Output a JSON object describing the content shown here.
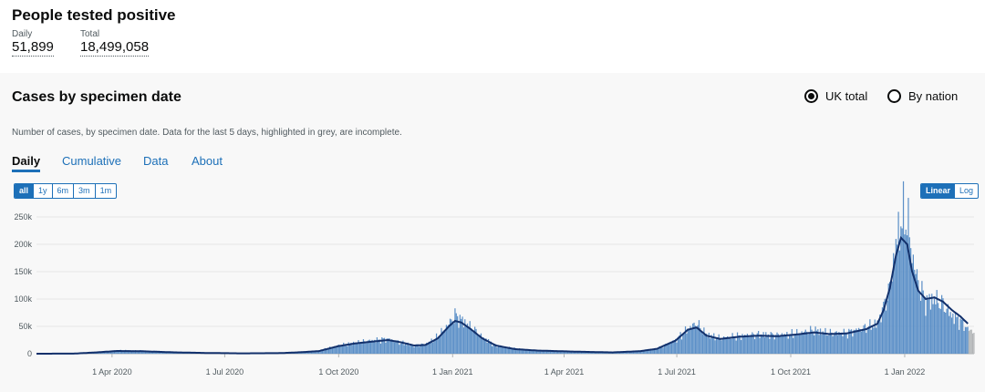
{
  "header": {
    "title": "People tested positive",
    "daily_label": "Daily",
    "daily_value": "51,899",
    "total_label": "Total",
    "total_value": "18,499,058"
  },
  "card": {
    "title": "Cases by specimen date",
    "radio_uk": "UK total",
    "radio_nation": "By nation",
    "radio_selected": "UK total",
    "description": "Number of cases, by specimen date. Data for the last 5 days, highlighted in grey, are incomplete.",
    "tabs": [
      {
        "label": "Daily",
        "active": true
      },
      {
        "label": "Cumulative",
        "active": false
      },
      {
        "label": "Data",
        "active": false
      },
      {
        "label": "About",
        "active": false
      }
    ],
    "ranges": [
      {
        "label": "all",
        "selected": true
      },
      {
        "label": "1y",
        "selected": false
      },
      {
        "label": "6m",
        "selected": false
      },
      {
        "label": "3m",
        "selected": false
      },
      {
        "label": "1m",
        "selected": false
      }
    ],
    "scales": [
      {
        "label": "Linear",
        "selected": true
      },
      {
        "label": "Log",
        "selected": false
      }
    ]
  },
  "colors": {
    "bar": "#5b8fc7",
    "line": "#12306b",
    "incomplete": "#b1b4b6",
    "accent": "#1d70b8"
  },
  "chart_data": {
    "type": "bar",
    "x_axis_type": "date",
    "x_start": "2020-01-31",
    "x_end": "2022-02-26",
    "ylim": [
      0,
      270000
    ],
    "y_ticks": [
      {
        "value": 0,
        "label": "0"
      },
      {
        "value": 50000,
        "label": "50k"
      },
      {
        "value": 100000,
        "label": "100k"
      },
      {
        "value": 150000,
        "label": "150k"
      },
      {
        "value": 200000,
        "label": "200k"
      },
      {
        "value": 250000,
        "label": "250k"
      }
    ],
    "x_ticks": [
      {
        "date": "2020-04-01",
        "label": "1 Apr 2020"
      },
      {
        "date": "2020-07-01",
        "label": "1 Jul 2020"
      },
      {
        "date": "2020-10-01",
        "label": "1 Oct 2020"
      },
      {
        "date": "2021-01-01",
        "label": "1 Jan 2021"
      },
      {
        "date": "2021-04-01",
        "label": "1 Apr 2021"
      },
      {
        "date": "2021-07-01",
        "label": "1 Jul 2021"
      },
      {
        "date": "2021-10-01",
        "label": "1 Oct 2021"
      },
      {
        "date": "2022-01-01",
        "label": "1 Jan 2022"
      }
    ],
    "incomplete_days": 5,
    "series": [
      {
        "kind": "daily",
        "dates": [
          "2020-01-31",
          "2020-03-01",
          "2020-03-20",
          "2020-04-05",
          "2020-04-25",
          "2020-05-20",
          "2020-06-15",
          "2020-07-15",
          "2020-08-15",
          "2020-09-01",
          "2020-09-15",
          "2020-10-01",
          "2020-10-15",
          "2020-11-01",
          "2020-11-10",
          "2020-11-20",
          "2020-12-01",
          "2020-12-10",
          "2020-12-20",
          "2020-12-29",
          "2021-01-03",
          "2021-01-08",
          "2021-01-15",
          "2021-01-25",
          "2021-02-05",
          "2021-02-20",
          "2021-03-10",
          "2021-04-10",
          "2021-05-10",
          "2021-06-01",
          "2021-06-15",
          "2021-06-30",
          "2021-07-10",
          "2021-07-17",
          "2021-07-25",
          "2021-08-05",
          "2021-08-20",
          "2021-09-05",
          "2021-09-20",
          "2021-10-05",
          "2021-10-20",
          "2021-11-01",
          "2021-11-15",
          "2021-12-01",
          "2021-12-10",
          "2021-12-15",
          "2021-12-20",
          "2021-12-25",
          "2021-12-29",
          "2022-01-03",
          "2022-01-07",
          "2022-01-12",
          "2022-01-18",
          "2022-01-25",
          "2022-02-01",
          "2022-02-08",
          "2022-02-15",
          "2022-02-21",
          "2022-02-26"
        ],
        "values": [
          0,
          300,
          3000,
          6000,
          5500,
          3000,
          1500,
          700,
          1200,
          3000,
          5000,
          15000,
          20000,
          25000,
          27000,
          20000,
          15000,
          17000,
          30000,
          55000,
          70000,
          62000,
          50000,
          30000,
          15000,
          9000,
          6000,
          4000,
          2500,
          5000,
          9000,
          25000,
          45000,
          55000,
          35000,
          28000,
          32000,
          35000,
          34000,
          36000,
          43000,
          37000,
          38000,
          48000,
          55000,
          85000,
          120000,
          200000,
          240000,
          250000,
          180000,
          130000,
          95000,
          100000,
          90000,
          70000,
          60000,
          45000,
          40000
        ]
      },
      {
        "kind": "average",
        "dates": [
          "2020-01-31",
          "2020-03-01",
          "2020-03-20",
          "2020-04-05",
          "2020-04-25",
          "2020-05-20",
          "2020-06-15",
          "2020-07-15",
          "2020-08-15",
          "2020-09-01",
          "2020-09-15",
          "2020-10-01",
          "2020-10-15",
          "2020-11-01",
          "2020-11-10",
          "2020-11-20",
          "2020-12-01",
          "2020-12-10",
          "2020-12-20",
          "2020-12-29",
          "2021-01-03",
          "2021-01-08",
          "2021-01-15",
          "2021-01-25",
          "2021-02-05",
          "2021-02-20",
          "2021-03-10",
          "2021-04-10",
          "2021-05-10",
          "2021-06-01",
          "2021-06-15",
          "2021-06-30",
          "2021-07-10",
          "2021-07-17",
          "2021-07-25",
          "2021-08-05",
          "2021-08-20",
          "2021-09-05",
          "2021-09-20",
          "2021-10-05",
          "2021-10-20",
          "2021-11-01",
          "2021-11-15",
          "2021-12-01",
          "2021-12-10",
          "2021-12-15",
          "2021-12-20",
          "2021-12-25",
          "2021-12-29",
          "2022-01-03",
          "2022-01-07",
          "2022-01-12",
          "2022-01-18",
          "2022-01-25",
          "2022-02-01",
          "2022-02-08",
          "2022-02-15",
          "2022-02-21"
        ],
        "values": [
          0,
          200,
          2500,
          5000,
          4500,
          2600,
          1400,
          650,
          1100,
          2800,
          4800,
          14000,
          19000,
          23000,
          25000,
          21000,
          15000,
          16000,
          28000,
          50000,
          60000,
          57000,
          46000,
          28000,
          15000,
          8500,
          5800,
          3800,
          2400,
          4600,
          9000,
          24000,
          44000,
          48000,
          33000,
          27000,
          31000,
          33000,
          32000,
          35000,
          39000,
          36000,
          37000,
          45000,
          55000,
          80000,
          120000,
          180000,
          212000,
          200000,
          150000,
          115000,
          100000,
          103000,
          95000,
          80000,
          68000,
          55000
        ]
      }
    ]
  }
}
